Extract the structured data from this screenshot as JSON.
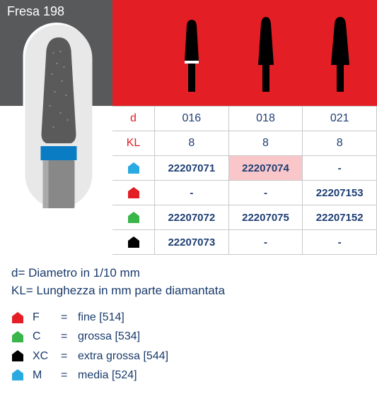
{
  "title": "Fresa 198",
  "colors": {
    "header_bg": "#58595b",
    "red_bg": "#e31e24",
    "label_red": "#e31e24",
    "text_navy": "#1d3e73",
    "note_navy": "#193a6b",
    "highlight_bg": "#f9c6c9",
    "grid": "#c8c9cb",
    "blue_icon": "#29abe2",
    "red_icon": "#e31e24",
    "green_icon": "#39b54a",
    "black_icon": "#000000"
  },
  "bur_shapes": [
    {
      "tip_w": 14,
      "base_w": 20,
      "body_h": 62,
      "blue_band": true
    },
    {
      "tip_w": 13,
      "base_w": 22,
      "body_h": 72,
      "blue_band": false
    },
    {
      "tip_w": 16,
      "base_w": 24,
      "body_h": 72,
      "blue_band": false
    }
  ],
  "row_labels": {
    "d": "d",
    "kl": "KL"
  },
  "columns": [
    "016",
    "018",
    "021"
  ],
  "kl_values": [
    "8",
    "8",
    "8"
  ],
  "icon_rows": [
    {
      "color": "#29abe2",
      "values": [
        "22207071",
        "22207074",
        "-"
      ],
      "highlight_idx": 1
    },
    {
      "color": "#e31e24",
      "values": [
        "-",
        "-",
        "22207153"
      ],
      "highlight_idx": -1
    },
    {
      "color": "#39b54a",
      "values": [
        "22207072",
        "22207075",
        "22207152"
      ],
      "highlight_idx": -1
    },
    {
      "color": "#000000",
      "values": [
        "22207073",
        "-",
        "-"
      ],
      "highlight_idx": -1
    }
  ],
  "notes": {
    "d": "d= Diametro in 1/10 mm",
    "kl": "KL= Lunghezza in mm parte diamantata"
  },
  "legend": [
    {
      "color": "#e31e24",
      "code": "F",
      "eq": "=",
      "text": "fine [514]"
    },
    {
      "color": "#39b54a",
      "code": "C",
      "eq": "=",
      "text": "grossa [534]"
    },
    {
      "color": "#000000",
      "code": "XC",
      "eq": "=",
      "text": "extra grossa [544]"
    },
    {
      "color": "#29abe2",
      "code": "M",
      "eq": "=",
      "text": "media [524]"
    }
  ]
}
